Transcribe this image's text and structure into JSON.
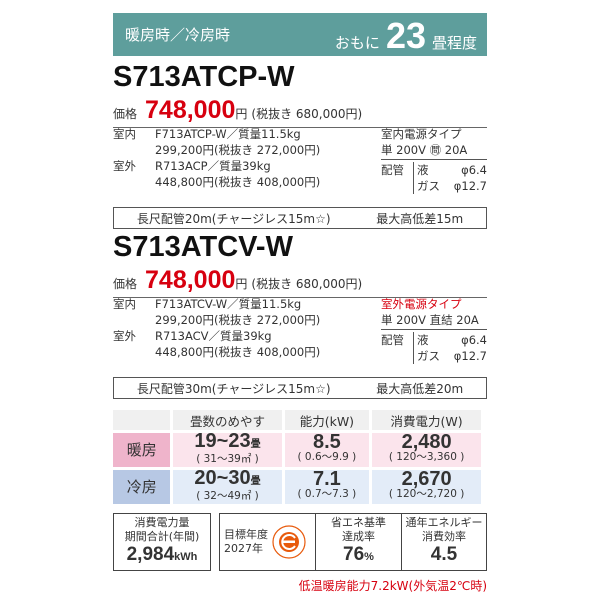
{
  "header": {
    "mode": "暖房時／冷房時",
    "prefix": "おもに",
    "size": "23",
    "suffix": "畳程度",
    "color": "#5e9e9c"
  },
  "models": [
    {
      "name": "S713ATCP-W",
      "price_label": "価格",
      "price": "748,000",
      "yen": "円",
      "price_ex": "(税抜き 680,000円)",
      "indoor_label": "室内",
      "indoor": "F713ATCP-W／質量11.5kg",
      "indoor_price": "299,200円(税抜き 272,000円)",
      "outdoor_label": "室外",
      "outdoor": "R713ACP／質量39kg",
      "outdoor_price": "448,800円(税抜き 408,000円)",
      "power_type": "室内電源タイプ",
      "power": "単 200V ㉄ 20A",
      "power_red": false,
      "pipe_label": "配管",
      "liquid": "液",
      "liquid_v": "φ6.4",
      "gas": "ガス",
      "gas_v": "φ12.7",
      "long_pipe": "長尺配管20m(チャージレス15m☆)",
      "height_diff": "最大高低差15m"
    },
    {
      "name": "S713ATCV-W",
      "price_label": "価格",
      "price": "748,000",
      "yen": "円",
      "price_ex": "(税抜き 680,000円)",
      "indoor_label": "室内",
      "indoor": "F713ATCV-W／質量11.5kg",
      "indoor_price": "299,200円(税抜き 272,000円)",
      "outdoor_label": "室外",
      "outdoor": "R713ACV／質量39kg",
      "outdoor_price": "448,800円(税抜き 408,000円)",
      "power_type": "室外電源タイプ",
      "power": "単 200V 直結 20A",
      "power_red": true,
      "pipe_label": "配管",
      "liquid": "液",
      "liquid_v": "φ6.4",
      "gas": "ガス",
      "gas_v": "φ12.7",
      "long_pipe": "長尺配管30m(チャージレス15m☆)",
      "height_diff": "最大高低差20m"
    }
  ],
  "table": {
    "headers": [
      "畳数のめやす",
      "能力(kW)",
      "消費電力(W)"
    ],
    "rows": [
      {
        "label": "暖房",
        "size": "19~23",
        "unit": "畳",
        "area": "( 31～39㎡ )",
        "cap": "8.5",
        "cap_r": "( 0.6～9.9 )",
        "pow": "2,480",
        "pow_r": "( 120～3,360 )"
      },
      {
        "label": "冷房",
        "size": "20~30",
        "unit": "畳",
        "area": "( 32～49㎡ )",
        "cap": "7.1",
        "cap_r": "( 0.7～7.3 )",
        "pow": "2,670",
        "pow_r": "( 120～2,720 )"
      }
    ]
  },
  "bottom": {
    "annual_l1": "消費電力量",
    "annual_l2": "期間合計(年間)",
    "annual": "2,984",
    "annual_unit": "kWh",
    "target_l1": "目標年度",
    "target_l2": "2027年",
    "rate_l1": "省エネ基準",
    "rate_l2": "達成率",
    "rate": "76",
    "rate_unit": "%",
    "apf_l1": "通年エネルギー",
    "apf_l2": "消費効率",
    "apf": "4.5"
  },
  "note": "低温暖房能力7.2kW(外気温2℃時)"
}
